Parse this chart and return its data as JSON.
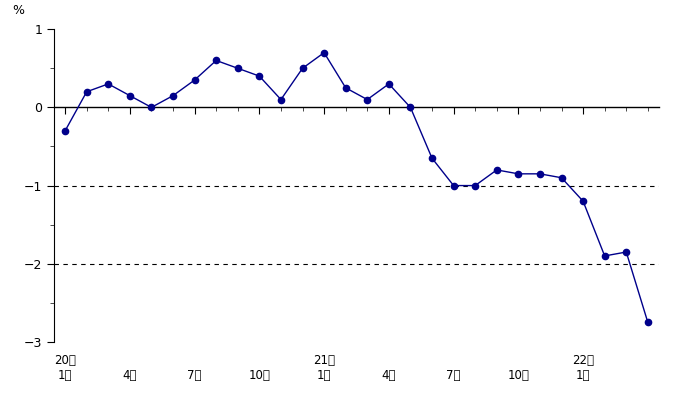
{
  "x_positions": [
    0,
    3,
    6,
    9,
    12,
    15,
    18,
    21,
    24
  ],
  "x_labels_row1": [
    "20年",
    "",
    "",
    "",
    "21年",
    "",
    "",
    "",
    "22年"
  ],
  "x_labels_row2": [
    "1月",
    "4月",
    "7月",
    "10月",
    "1月",
    "4月",
    "7月",
    "10月",
    "1月"
  ],
  "values": [
    -0.3,
    0.2,
    0.3,
    0.15,
    0.0,
    0.15,
    0.35,
    0.6,
    0.5,
    0.4,
    0.1,
    0.5,
    0.7,
    0.25,
    0.1,
    0.3,
    0.0,
    -0.65,
    -1.0,
    -1.0,
    -0.8,
    -0.85,
    -0.85,
    -0.9,
    -1.2,
    -1.9,
    -1.85,
    -2.75
  ],
  "x_indices": [
    0,
    1,
    2,
    3,
    4,
    5,
    6,
    7,
    8,
    9,
    10,
    11,
    12,
    13,
    14,
    15,
    16,
    17,
    18,
    19,
    20,
    21,
    22,
    23,
    24,
    25,
    26,
    27
  ],
  "ylim": [
    -3,
    1
  ],
  "yticks": [
    -3,
    -2,
    -1,
    0,
    1
  ],
  "dashed_yticks": [
    -1,
    -2
  ],
  "line_color": "#00008B",
  "marker_color": "#00008B",
  "ylabel": "%",
  "background_color": "#ffffff"
}
